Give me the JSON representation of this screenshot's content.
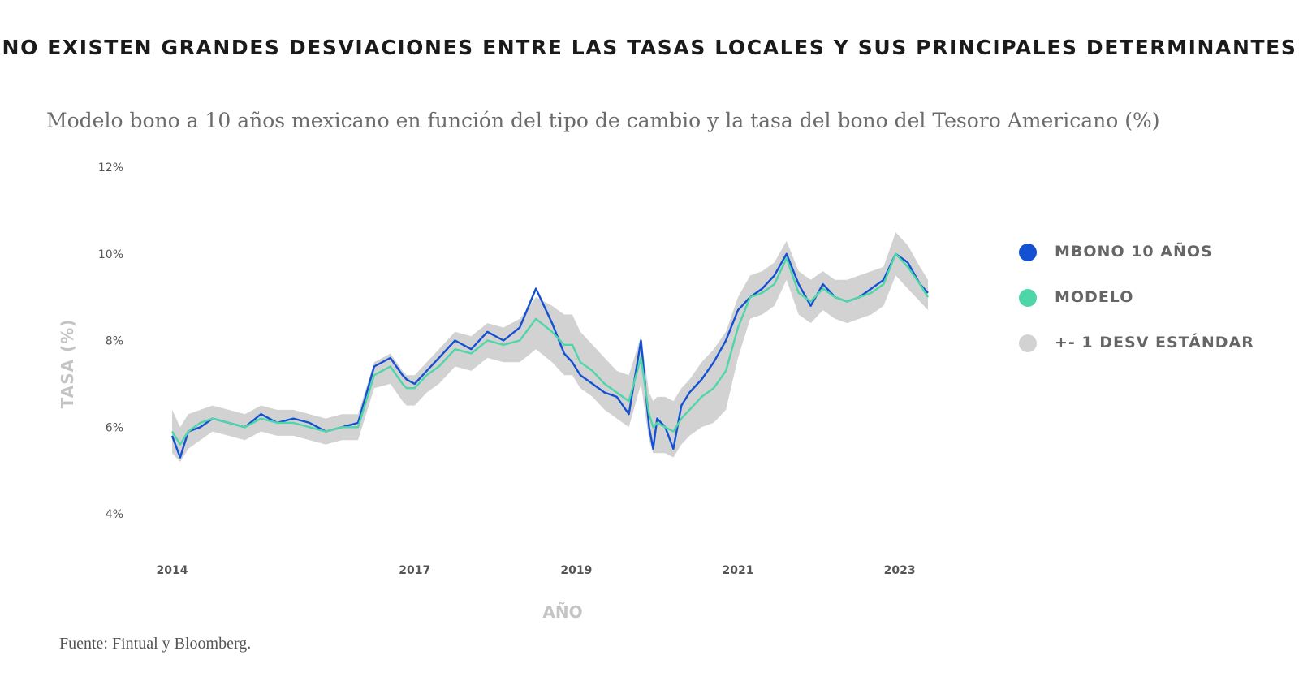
{
  "headline": "NO EXISTEN GRANDES DESVIACIONES ENTRE LAS TASAS LOCALES Y SUS PRINCIPALES DETERMINANTES",
  "subtitle": "Modelo bono a 10 años mexicano en función del tipo de cambio y la tasa del bono del Tesoro Americano (%)",
  "source": "Fuente: Fintual y Bloomberg.",
  "colors": {
    "mbono": "#1450d2",
    "modelo": "#4fd6a8",
    "band": "#d2d2d2",
    "axis_text": "#555555",
    "axis_title": "#c4c4c4"
  },
  "legend": [
    {
      "label": "MBONO 10 AÑOS",
      "color": "#1450d2"
    },
    {
      "label": "MODELO",
      "color": "#4fd6a8"
    },
    {
      "label": "+- 1 DESV ESTÁNDAR",
      "color": "#d2d2d2"
    }
  ],
  "chart_data": {
    "type": "line",
    "xlabel": "AÑO",
    "ylabel": "TASA (%)",
    "ylim": [
      4,
      12
    ],
    "xlim": [
      2013.95,
      2023.4
    ],
    "y_ticks": [
      {
        "value": 4,
        "label": "4%"
      },
      {
        "value": 6,
        "label": "6%"
      },
      {
        "value": 8,
        "label": "8%"
      },
      {
        "value": 10,
        "label": "10%"
      },
      {
        "value": 12,
        "label": "12%"
      }
    ],
    "x_ticks": [
      {
        "value": 2014,
        "label": "2014"
      },
      {
        "value": 2017,
        "label": "2017"
      },
      {
        "value": 2019,
        "label": "2019"
      },
      {
        "value": 2021,
        "label": "2021"
      },
      {
        "value": 2023,
        "label": "2023"
      }
    ],
    "grid": false,
    "legend_position": "right",
    "series": [
      {
        "name": "MBONO 10 AÑOS",
        "x": [
          2014.0,
          2014.1,
          2014.2,
          2014.35,
          2014.5,
          2014.7,
          2014.9,
          2015.1,
          2015.3,
          2015.5,
          2015.7,
          2015.9,
          2016.1,
          2016.3,
          2016.5,
          2016.7,
          2016.85,
          2016.9,
          2017.0,
          2017.15,
          2017.3,
          2017.5,
          2017.7,
          2017.9,
          2018.1,
          2018.3,
          2018.5,
          2018.7,
          2018.85,
          2018.95,
          2019.05,
          2019.2,
          2019.35,
          2019.5,
          2019.65,
          2019.8,
          2019.9,
          2019.95,
          2020.0,
          2020.1,
          2020.2,
          2020.3,
          2020.4,
          2020.55,
          2020.7,
          2020.85,
          2021.0,
          2021.15,
          2021.3,
          2021.45,
          2021.6,
          2021.75,
          2021.9,
          2022.05,
          2022.2,
          2022.35,
          2022.5,
          2022.65,
          2022.8,
          2022.95,
          2023.1,
          2023.25,
          2023.35
        ],
        "values": [
          5.8,
          5.3,
          5.9,
          6.0,
          6.2,
          6.1,
          6.0,
          6.3,
          6.1,
          6.2,
          6.1,
          5.9,
          6.0,
          6.1,
          7.4,
          7.6,
          7.2,
          7.1,
          7.0,
          7.3,
          7.6,
          8.0,
          7.8,
          8.2,
          8.0,
          8.3,
          9.2,
          8.4,
          7.7,
          7.5,
          7.2,
          7.0,
          6.8,
          6.7,
          6.3,
          8.0,
          6.0,
          5.5,
          6.2,
          6.0,
          5.5,
          6.5,
          6.8,
          7.1,
          7.5,
          8.0,
          8.7,
          9.0,
          9.2,
          9.5,
          10.0,
          9.3,
          8.8,
          9.3,
          9.0,
          8.9,
          9.0,
          9.2,
          9.4,
          10.0,
          9.8,
          9.3,
          9.1
        ]
      },
      {
        "name": "MODELO",
        "x": [
          2014.0,
          2014.1,
          2014.2,
          2014.35,
          2014.5,
          2014.7,
          2014.9,
          2015.1,
          2015.3,
          2015.5,
          2015.7,
          2015.9,
          2016.1,
          2016.3,
          2016.5,
          2016.7,
          2016.85,
          2016.9,
          2017.0,
          2017.15,
          2017.3,
          2017.5,
          2017.7,
          2017.9,
          2018.1,
          2018.3,
          2018.5,
          2018.7,
          2018.85,
          2018.95,
          2019.05,
          2019.2,
          2019.35,
          2019.5,
          2019.65,
          2019.8,
          2019.9,
          2019.95,
          2020.0,
          2020.1,
          2020.2,
          2020.3,
          2020.4,
          2020.55,
          2020.7,
          2020.85,
          2021.0,
          2021.15,
          2021.3,
          2021.45,
          2021.6,
          2021.75,
          2021.9,
          2022.05,
          2022.2,
          2022.35,
          2022.5,
          2022.65,
          2022.8,
          2022.95,
          2023.1,
          2023.25,
          2023.35
        ],
        "values": [
          5.9,
          5.6,
          5.9,
          6.1,
          6.2,
          6.1,
          6.0,
          6.2,
          6.1,
          6.1,
          6.0,
          5.9,
          6.0,
          6.0,
          7.2,
          7.4,
          7.0,
          6.9,
          6.9,
          7.2,
          7.4,
          7.8,
          7.7,
          8.0,
          7.9,
          8.0,
          8.5,
          8.2,
          7.9,
          7.9,
          7.5,
          7.3,
          7.0,
          6.8,
          6.6,
          7.6,
          6.3,
          6.0,
          6.1,
          6.0,
          5.9,
          6.2,
          6.4,
          6.7,
          6.9,
          7.3,
          8.3,
          9.0,
          9.1,
          9.3,
          9.9,
          9.1,
          8.9,
          9.2,
          9.0,
          8.9,
          9.0,
          9.1,
          9.3,
          10.0,
          9.7,
          9.3,
          9.0
        ]
      }
    ],
    "band": {
      "name": "+- 1 DESV ESTÁNDAR",
      "x": [
        2014.0,
        2014.1,
        2014.2,
        2014.35,
        2014.5,
        2014.7,
        2014.9,
        2015.1,
        2015.3,
        2015.5,
        2015.7,
        2015.9,
        2016.1,
        2016.3,
        2016.5,
        2016.7,
        2016.85,
        2016.9,
        2017.0,
        2017.15,
        2017.3,
        2017.5,
        2017.7,
        2017.9,
        2018.1,
        2018.3,
        2018.5,
        2018.7,
        2018.85,
        2018.95,
        2019.05,
        2019.2,
        2019.35,
        2019.5,
        2019.65,
        2019.8,
        2019.9,
        2019.95,
        2020.0,
        2020.1,
        2020.2,
        2020.3,
        2020.4,
        2020.55,
        2020.7,
        2020.85,
        2021.0,
        2021.15,
        2021.3,
        2021.45,
        2021.6,
        2021.75,
        2021.9,
        2022.05,
        2022.2,
        2022.35,
        2022.5,
        2022.65,
        2022.8,
        2022.95,
        2023.1,
        2023.25,
        2023.35
      ],
      "upper": [
        6.4,
        6.0,
        6.3,
        6.4,
        6.5,
        6.4,
        6.3,
        6.5,
        6.4,
        6.4,
        6.3,
        6.2,
        6.3,
        6.3,
        7.5,
        7.7,
        7.3,
        7.2,
        7.2,
        7.5,
        7.8,
        8.2,
        8.1,
        8.4,
        8.3,
        8.5,
        9.0,
        8.8,
        8.6,
        8.6,
        8.2,
        7.9,
        7.6,
        7.3,
        7.2,
        8.1,
        6.8,
        6.6,
        6.7,
        6.7,
        6.6,
        6.9,
        7.1,
        7.5,
        7.8,
        8.2,
        9.0,
        9.5,
        9.6,
        9.8,
        10.3,
        9.6,
        9.4,
        9.6,
        9.4,
        9.4,
        9.5,
        9.6,
        9.7,
        10.5,
        10.2,
        9.7,
        9.4
      ],
      "lower": [
        5.4,
        5.2,
        5.5,
        5.7,
        5.9,
        5.8,
        5.7,
        5.9,
        5.8,
        5.8,
        5.7,
        5.6,
        5.7,
        5.7,
        6.9,
        7.0,
        6.6,
        6.5,
        6.5,
        6.8,
        7.0,
        7.4,
        7.3,
        7.6,
        7.5,
        7.5,
        7.8,
        7.5,
        7.2,
        7.2,
        6.9,
        6.7,
        6.4,
        6.2,
        6.0,
        7.0,
        5.7,
        5.4,
        5.4,
        5.4,
        5.3,
        5.6,
        5.8,
        6.0,
        6.1,
        6.4,
        7.6,
        8.5,
        8.6,
        8.8,
        9.4,
        8.6,
        8.4,
        8.7,
        8.5,
        8.4,
        8.5,
        8.6,
        8.8,
        9.5,
        9.2,
        8.9,
        8.7
      ]
    }
  }
}
